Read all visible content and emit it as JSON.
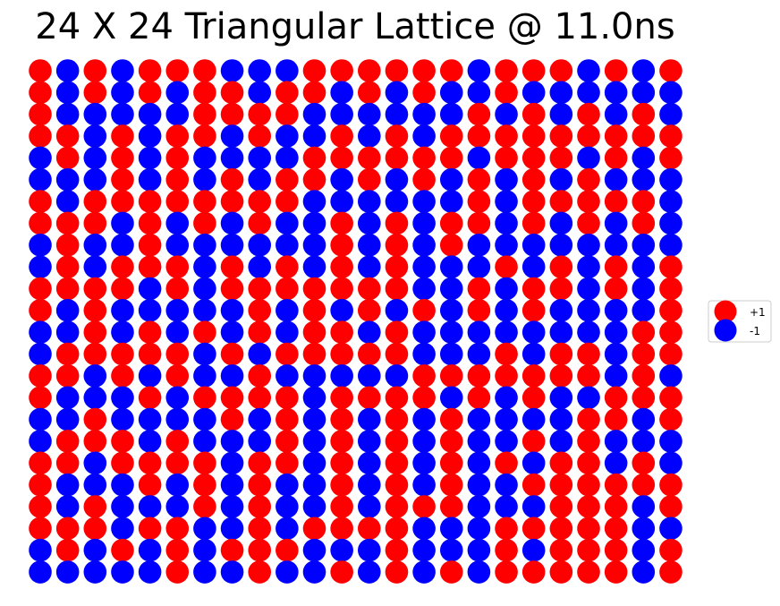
{
  "chart_data": {
    "type": "scatter",
    "title": "24 X 24 Triangular Lattice @ 11.0ns",
    "rows": 24,
    "cols": 24,
    "colors": {
      "+1": "#ff0000",
      "-1": "#0000ff"
    },
    "legend": {
      "placement": "center-right",
      "entries": [
        {
          "label": "+1",
          "value": 1,
          "color": "#ff0000"
        },
        {
          "label": "-1",
          "value": -1,
          "color": "#0000ff"
        }
      ]
    },
    "grid": false,
    "spins": [
      "RBRBRRRBBBRRRRRRBRRRBRBR",
      "RBRBRBRRBRRBRBRBBRBBBBBB",
      "RBBBBBRRRRBBBBBBRBRBRBRB",
      "RRBRBRRBRBBRBRBRRRRRRRRR",
      "BRBRBRBBBBRRRRRRBRRRBRBR",
      "BBBRBRBRBRRBRBRBRBRBRBBB",
      "RBRRRRRRRRBBBBBBRBRRRRRB",
      "RRRBRBRBRBBRBRBRRBRBRBRB",
      "BRBBRBBBBBBRBRBRBBBBBBBB",
      "BRBRRRBRBRBRBRBBBRBRBRBR",
      "RRRRBRBRRRRRRRBBRBRRBRBR",
      "RBRBBBBBRBRBRBRBRBRBBBBR",
      "BBRBRBRBRBRRBRBBBBBBBBRR",
      "BRRRRRBRBRRRRRBBBRBRRBRR",
      "RRBRBRBBRBBBBBRRRRRRRBRB",
      "RBBBRBRRRRBRRRRBRBRBBRRR",
      "BBRBBBBRBRBRBRBRBBBBRRBR",
      "BRRRBRBBBRBRBRBRBBRBRBBB",
      "RRBRRRRBRRBRBRBRBRBRRBRB",
      "RBBBRBRBRBBRBRBRBBRRRRRR",
      "RBRBBBRBRBBRBRRRBBBRRRBR",
      "RRRBRRBBRBRRRRBBBRRRRRBB",
      "BRBRBRBRRRBBBRBBBRBRRRBR",
      "BBBBBRBBRBBRBRBRBRRRRRBR"
    ]
  }
}
